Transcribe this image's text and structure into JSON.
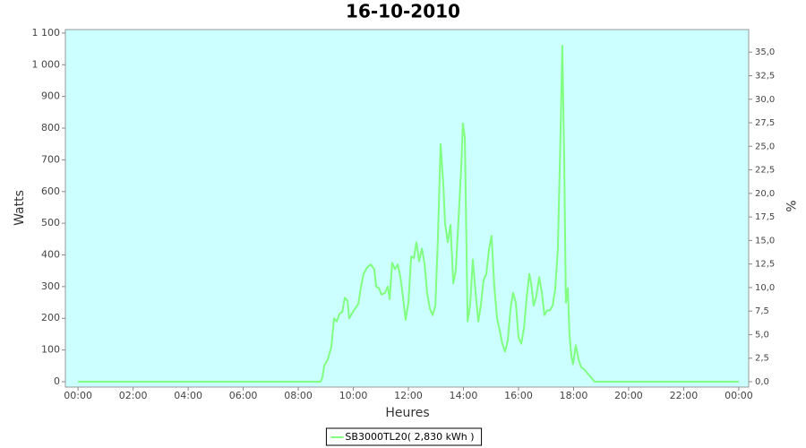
{
  "chart_data": {
    "type": "line",
    "title": "16-10-2010",
    "x_label": "Heures",
    "y_label": "Watts",
    "y2_label": "%",
    "x": [
      0,
      8.81,
      8.88,
      8.94,
      9.07,
      9.2,
      9.3,
      9.4,
      9.5,
      9.6,
      9.69,
      9.79,
      9.85,
      10.02,
      10.18,
      10.28,
      10.37,
      10.5,
      10.63,
      10.76,
      10.83,
      10.93,
      11.02,
      11.15,
      11.25,
      11.32,
      11.41,
      11.51,
      11.61,
      11.71,
      11.8,
      11.9,
      12.0,
      12.1,
      12.2,
      12.29,
      12.39,
      12.49,
      12.59,
      12.68,
      12.78,
      12.88,
      12.98,
      13.07,
      13.17,
      13.27,
      13.33,
      13.43,
      13.53,
      13.63,
      13.72,
      13.82,
      13.92,
      13.98,
      14.05,
      14.15,
      14.24,
      14.34,
      14.44,
      14.54,
      14.63,
      14.73,
      14.83,
      14.93,
      15.02,
      15.12,
      15.22,
      15.32,
      15.41,
      15.51,
      15.61,
      15.71,
      15.8,
      15.9,
      16.0,
      16.1,
      16.2,
      16.29,
      16.39,
      16.46,
      16.55,
      16.65,
      16.75,
      16.85,
      16.94,
      17.04,
      17.14,
      17.24,
      17.33,
      17.43,
      17.53,
      17.59,
      17.66,
      17.72,
      17.79,
      17.85,
      17.92,
      17.98,
      18.08,
      18.18,
      18.28,
      18.37,
      18.47,
      18.57,
      18.67,
      18.76,
      24
    ],
    "series": [
      {
        "name": "SB3000TL20( 2,830 kWh )",
        "color": "#80ff80",
        "values": [
          0,
          0,
          15,
          50,
          70,
          110,
          200,
          190,
          215,
          220,
          265,
          255,
          200,
          225,
          245,
          300,
          340,
          360,
          370,
          355,
          300,
          295,
          275,
          280,
          300,
          260,
          375,
          355,
          370,
          330,
          270,
          195,
          250,
          395,
          390,
          440,
          380,
          420,
          370,
          280,
          230,
          210,
          240,
          450,
          750,
          620,
          500,
          440,
          495,
          310,
          350,
          510,
          680,
          815,
          770,
          190,
          240,
          385,
          280,
          190,
          240,
          320,
          340,
          420,
          460,
          300,
          200,
          160,
          120,
          95,
          130,
          230,
          280,
          250,
          140,
          120,
          170,
          260,
          340,
          310,
          240,
          270,
          330,
          280,
          210,
          225,
          225,
          240,
          290,
          420,
          800,
          1060,
          700,
          250,
          295,
          150,
          80,
          55,
          115,
          70,
          45,
          40,
          30,
          20,
          10,
          0,
          0
        ]
      }
    ],
    "xlim": [
      -0.46,
      24.36
    ],
    "xticks": [
      {
        "value": 0,
        "label": "00:00"
      },
      {
        "value": 2,
        "label": "02:00"
      },
      {
        "value": 4,
        "label": "04:00"
      },
      {
        "value": 6,
        "label": "06:00"
      },
      {
        "value": 8,
        "label": "08:00"
      },
      {
        "value": 10,
        "label": "10:00"
      },
      {
        "value": 12,
        "label": "12:00"
      },
      {
        "value": 14,
        "label": "14:00"
      },
      {
        "value": 16,
        "label": "16:00"
      },
      {
        "value": 18,
        "label": "18:00"
      },
      {
        "value": 20,
        "label": "20:00"
      },
      {
        "value": 22,
        "label": "22:00"
      },
      {
        "value": 24,
        "label": "00:00"
      }
    ],
    "ylim": [
      -17,
      1111
    ],
    "yticks": [
      0,
      100,
      200,
      300,
      400,
      500,
      600,
      700,
      800,
      900,
      {
        "value": 1000,
        "label": "1 000"
      },
      {
        "value": 1100,
        "label": "1 100"
      }
    ],
    "y2lim": [
      -0.57,
      37.4
    ],
    "y2ticks": [
      {
        "value": 0,
        "label": "0,0"
      },
      {
        "value": 2.5,
        "label": "2,5"
      },
      {
        "value": 5,
        "label": "5,0"
      },
      {
        "value": 7.5,
        "label": "7,5"
      },
      {
        "value": 10,
        "label": "10,0"
      },
      {
        "value": 12.5,
        "label": "12,5"
      },
      {
        "value": 15,
        "label": "15,0"
      },
      {
        "value": 17.5,
        "label": "17,5"
      },
      {
        "value": 20,
        "label": "20,0"
      },
      {
        "value": 22.5,
        "label": "22,5"
      },
      {
        "value": 25,
        "label": "25,0"
      },
      {
        "value": 27.5,
        "label": "27,5"
      },
      {
        "value": 30,
        "label": "30,0"
      },
      {
        "value": 32.5,
        "label": "32,5"
      },
      {
        "value": 35,
        "label": "35,0"
      }
    ],
    "plot_background": "#ccffff",
    "legend": "bottom"
  }
}
